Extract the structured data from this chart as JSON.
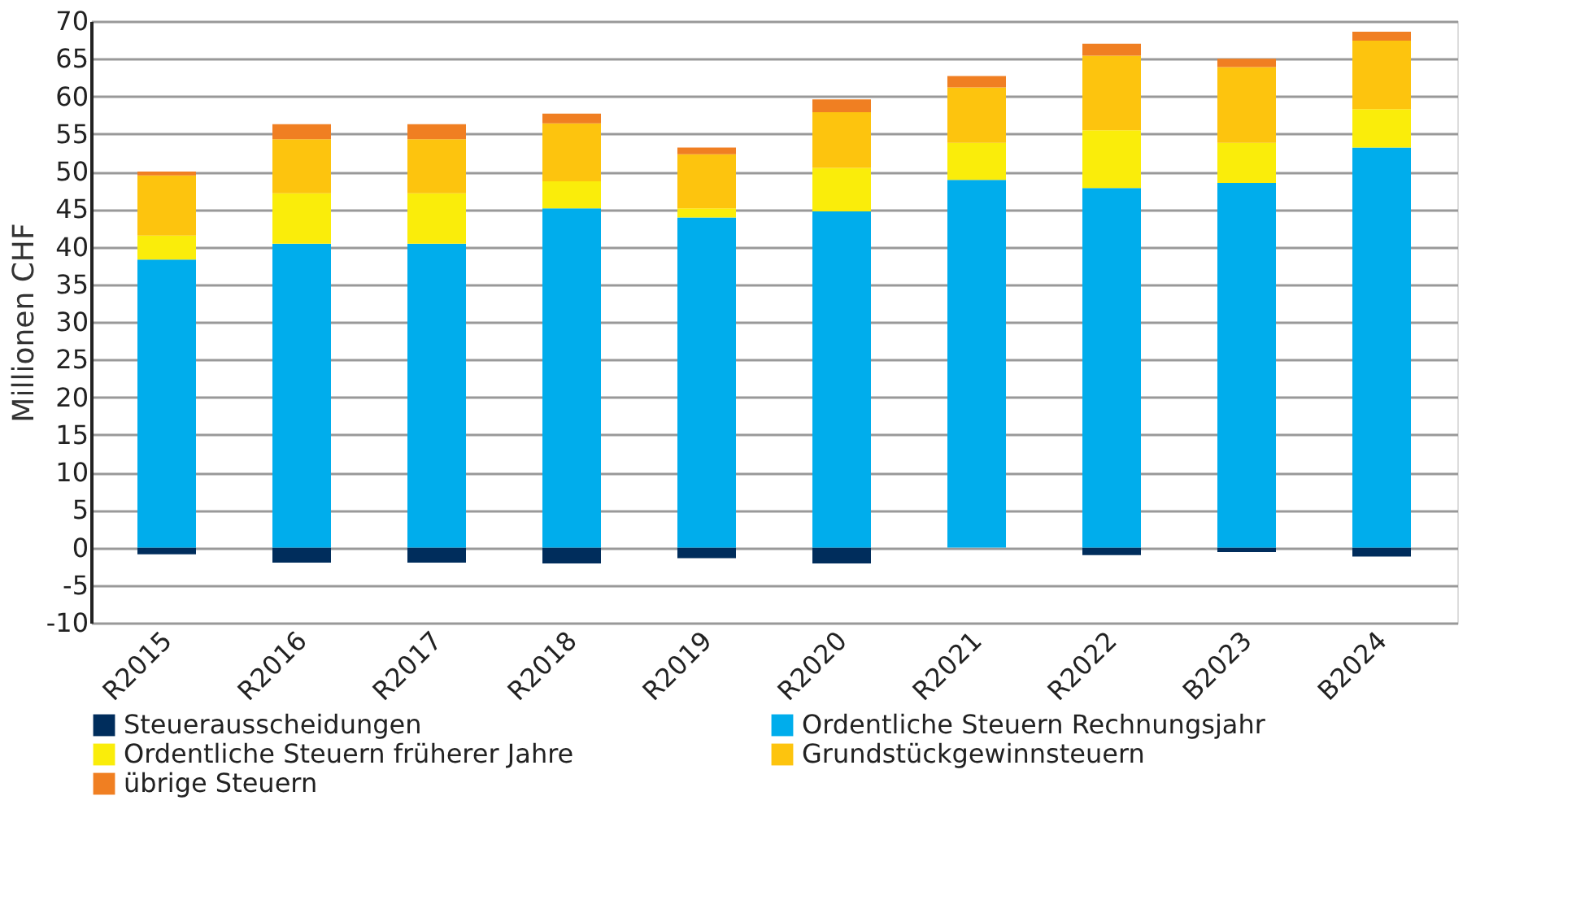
{
  "chart_data": {
    "type": "bar",
    "stacked": true,
    "ylabel": "Millionen CHF",
    "categories": [
      "R2015",
      "R2016",
      "R2017",
      "R2018",
      "R2019",
      "R2020",
      "R2021",
      "R2022",
      "B2023",
      "B2024"
    ],
    "series": [
      {
        "name": "Steuerausscheidungen",
        "color": "#002d5c",
        "values": [
          -0.9,
          -2.0,
          -2.0,
          -2.1,
          -1.4,
          -2.1,
          0,
          -1.0,
          -0.6,
          -1.2
        ]
      },
      {
        "name": "Ordentliche Steuern Rechnungsjahr",
        "color": "#00adec",
        "values": [
          38.3,
          40.4,
          40.4,
          45.1,
          43.9,
          44.7,
          48.9,
          47.8,
          48.5,
          53.2
        ]
      },
      {
        "name": "Ordentliche Steuern früherer Jahre",
        "color": "#faed0a",
        "values": [
          3.2,
          6.7,
          6.7,
          3.6,
          1.2,
          5.8,
          4.9,
          7.7,
          5.3,
          5.1
        ]
      },
      {
        "name": "Grundstückgewinnsteuern",
        "color": "#fdc40e",
        "values": [
          8.0,
          7.2,
          7.2,
          7.7,
          7.2,
          7.4,
          7.4,
          9.9,
          10.1,
          9.1
        ]
      },
      {
        "name": "übrige Steuern",
        "color": "#f07f22",
        "values": [
          0.5,
          2.0,
          2.0,
          1.3,
          0.9,
          1.7,
          1.5,
          1.6,
          1.1,
          1.2
        ]
      }
    ],
    "ylim": [
      -10,
      70
    ],
    "yticks": [
      -10,
      -5,
      0,
      5,
      10,
      15,
      20,
      25,
      30,
      35,
      40,
      45,
      50,
      55,
      60,
      65,
      70
    ],
    "grid": "y",
    "legend": "bottom"
  }
}
